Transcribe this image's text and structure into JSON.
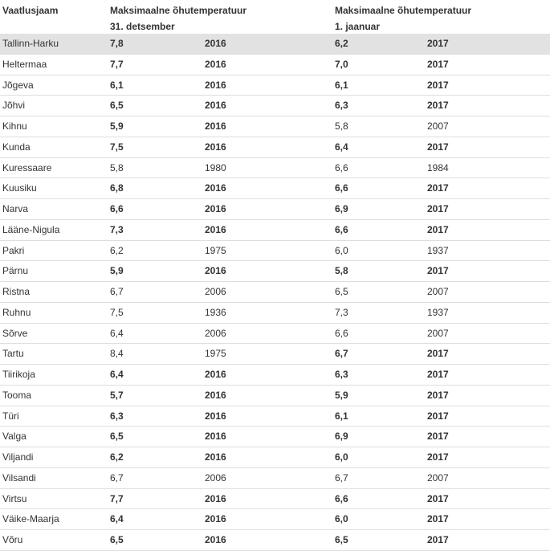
{
  "headers": {
    "station": "Vaatlusjaam",
    "col1_line1": "Maksimaalne õhutemperatuur",
    "col1_line2": "31. detsember",
    "col2_line1": "Maksimaalne õhutemperatuur",
    "col2_line2": "1. jaanuar"
  },
  "rows": [
    {
      "station": "Tallinn-Harku",
      "dec_temp": "7,8",
      "dec_year": "2016",
      "dec_bold": true,
      "jan_temp": "6,2",
      "jan_year": "2017",
      "jan_bold": true,
      "highlight": true
    },
    {
      "station": "Heltermaa",
      "dec_temp": "7,7",
      "dec_year": "2016",
      "dec_bold": true,
      "jan_temp": "7,0",
      "jan_year": "2017",
      "jan_bold": true
    },
    {
      "station": "Jõgeva",
      "dec_temp": "6,1",
      "dec_year": "2016",
      "dec_bold": true,
      "jan_temp": "6,1",
      "jan_year": "2017",
      "jan_bold": true
    },
    {
      "station": "Jõhvi",
      "dec_temp": "6,5",
      "dec_year": "2016",
      "dec_bold": true,
      "jan_temp": "6,3",
      "jan_year": "2017",
      "jan_bold": true
    },
    {
      "station": "Kihnu",
      "dec_temp": "5,9",
      "dec_year": "2016",
      "dec_bold": true,
      "jan_temp": "5,8",
      "jan_year": "2007",
      "jan_bold": false
    },
    {
      "station": "Kunda",
      "dec_temp": "7,5",
      "dec_year": "2016",
      "dec_bold": true,
      "jan_temp": "6,4",
      "jan_year": "2017",
      "jan_bold": true
    },
    {
      "station": "Kuressaare",
      "dec_temp": "5,8",
      "dec_year": "1980",
      "dec_bold": false,
      "jan_temp": "6,6",
      "jan_year": "1984",
      "jan_bold": false
    },
    {
      "station": "Kuusiku",
      "dec_temp": "6,8",
      "dec_year": "2016",
      "dec_bold": true,
      "jan_temp": "6,6",
      "jan_year": "2017",
      "jan_bold": true
    },
    {
      "station": "Narva",
      "dec_temp": "6,6",
      "dec_year": "2016",
      "dec_bold": true,
      "jan_temp": "6,9",
      "jan_year": "2017",
      "jan_bold": true
    },
    {
      "station": "Lääne-Nigula",
      "dec_temp": "7,3",
      "dec_year": "2016",
      "dec_bold": true,
      "jan_temp": "6,6",
      "jan_year": "2017",
      "jan_bold": true
    },
    {
      "station": "Pakri",
      "dec_temp": "6,2",
      "dec_year": "1975",
      "dec_bold": false,
      "jan_temp": "6,0",
      "jan_year": "1937",
      "jan_bold": false
    },
    {
      "station": "Pärnu",
      "dec_temp": "5,9",
      "dec_year": "2016",
      "dec_bold": true,
      "jan_temp": "5,8",
      "jan_year": "2017",
      "jan_bold": true
    },
    {
      "station": "Ristna",
      "dec_temp": "6,7",
      "dec_year": "2006",
      "dec_bold": false,
      "jan_temp": "6,5",
      "jan_year": "2007",
      "jan_bold": false
    },
    {
      "station": "Ruhnu",
      "dec_temp": "7,5",
      "dec_year": "1936",
      "dec_bold": false,
      "jan_temp": "7,3",
      "jan_year": "1937",
      "jan_bold": false
    },
    {
      "station": "Sõrve",
      "dec_temp": "6,4",
      "dec_year": "2006",
      "dec_bold": false,
      "jan_temp": "6,6",
      "jan_year": "2007",
      "jan_bold": false
    },
    {
      "station": "Tartu",
      "dec_temp": "8,4",
      "dec_year": "1975",
      "dec_bold": false,
      "jan_temp": "6,7",
      "jan_year": "2017",
      "jan_bold": true
    },
    {
      "station": "Tiirikoja",
      "dec_temp": "6,4",
      "dec_year": "2016",
      "dec_bold": true,
      "jan_temp": "6,3",
      "jan_year": "2017",
      "jan_bold": true
    },
    {
      "station": "Tooma",
      "dec_temp": "5,7",
      "dec_year": "2016",
      "dec_bold": true,
      "jan_temp": "5,9",
      "jan_year": "2017",
      "jan_bold": true
    },
    {
      "station": "Türi",
      "dec_temp": "6,3",
      "dec_year": "2016",
      "dec_bold": true,
      "jan_temp": "6,1",
      "jan_year": "2017",
      "jan_bold": true
    },
    {
      "station": "Valga",
      "dec_temp": "6,5",
      "dec_year": "2016",
      "dec_bold": true,
      "jan_temp": "6,9",
      "jan_year": "2017",
      "jan_bold": true
    },
    {
      "station": "Viljandi",
      "dec_temp": "6,2",
      "dec_year": "2016",
      "dec_bold": true,
      "jan_temp": "6,0",
      "jan_year": "2017",
      "jan_bold": true
    },
    {
      "station": "Vilsandi",
      "dec_temp": "6,7",
      "dec_year": "2006",
      "dec_bold": false,
      "jan_temp": "6,7",
      "jan_year": "2007",
      "jan_bold": false
    },
    {
      "station": "Virtsu",
      "dec_temp": "7,7",
      "dec_year": "2016",
      "dec_bold": true,
      "jan_temp": "6,6",
      "jan_year": "2017",
      "jan_bold": true
    },
    {
      "station": "Väike-Maarja",
      "dec_temp": "6,4",
      "dec_year": "2016",
      "dec_bold": true,
      "jan_temp": "6,0",
      "jan_year": "2017",
      "jan_bold": true
    },
    {
      "station": "Võru",
      "dec_temp": "6,5",
      "dec_year": "2016",
      "dec_bold": true,
      "jan_temp": "6,5",
      "jan_year": "2017",
      "jan_bold": true
    }
  ]
}
